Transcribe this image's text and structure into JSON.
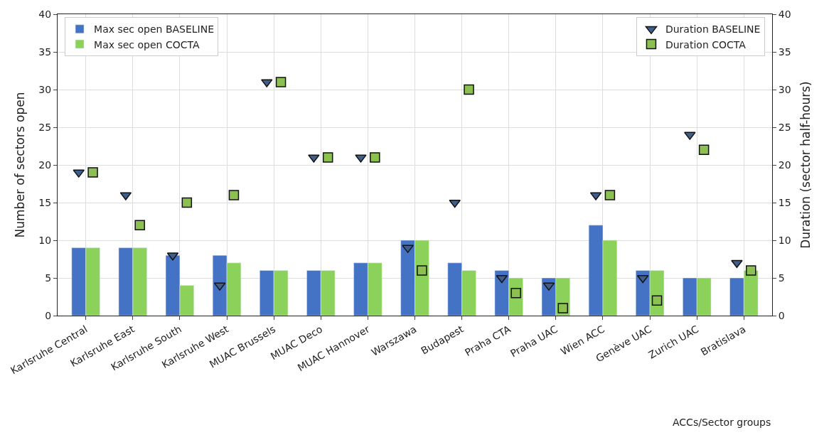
{
  "chart_data": {
    "type": "bar",
    "xlabel": "ACCs/Sector groups",
    "ylabel": "Number of sectors open",
    "y2label": "Duration (sector half-hours)",
    "categories": [
      "Karlsruhe Central",
      "Karlsruhe East",
      "Karlsruhe South",
      "Karlsruhe West",
      "MUAC Brussels",
      "MUAC Deco",
      "MUAC Hannover",
      "Warszawa",
      "Budapest",
      "Praha CTA",
      "Praha UAC",
      "Wien ACC",
      "Genève UAC",
      "Zurich UAC",
      "Bratislava"
    ],
    "series": [
      {
        "name": "Max sec open BASELINE",
        "color": "#4472c4",
        "values": [
          9,
          9,
          8,
          8,
          6,
          6,
          7,
          10,
          7,
          6,
          5,
          12,
          6,
          5,
          5
        ]
      },
      {
        "name": "Max sec open COCTA",
        "color": "#8cd25a",
        "values": [
          9,
          9,
          4,
          7,
          6,
          6,
          7,
          10,
          6,
          5,
          5,
          10,
          6,
          5,
          6
        ]
      },
      {
        "name": "Duration BASELINE",
        "type": "scatter",
        "axis": "y2",
        "marker": "triangle",
        "color": "#3f5e8c",
        "values": [
          19,
          16,
          8,
          4,
          31,
          21,
          21,
          9,
          15,
          5,
          4,
          16,
          5,
          24,
          7
        ]
      },
      {
        "name": "Duration COCTA",
        "type": "scatter",
        "axis": "y2",
        "marker": "square",
        "color": "#8cc152",
        "values": [
          19,
          12,
          15,
          16,
          31,
          21,
          21,
          6,
          30,
          3,
          1,
          16,
          2,
          22,
          6
        ]
      }
    ],
    "ylim": [
      0,
      40
    ],
    "yticks": [
      0,
      5,
      10,
      15,
      20,
      25,
      30,
      35,
      40
    ],
    "y2lim": [
      0,
      40
    ],
    "y2ticks": [
      0,
      5,
      10,
      15,
      20,
      25,
      30,
      35,
      40
    ],
    "grid": true,
    "legend": "top"
  }
}
